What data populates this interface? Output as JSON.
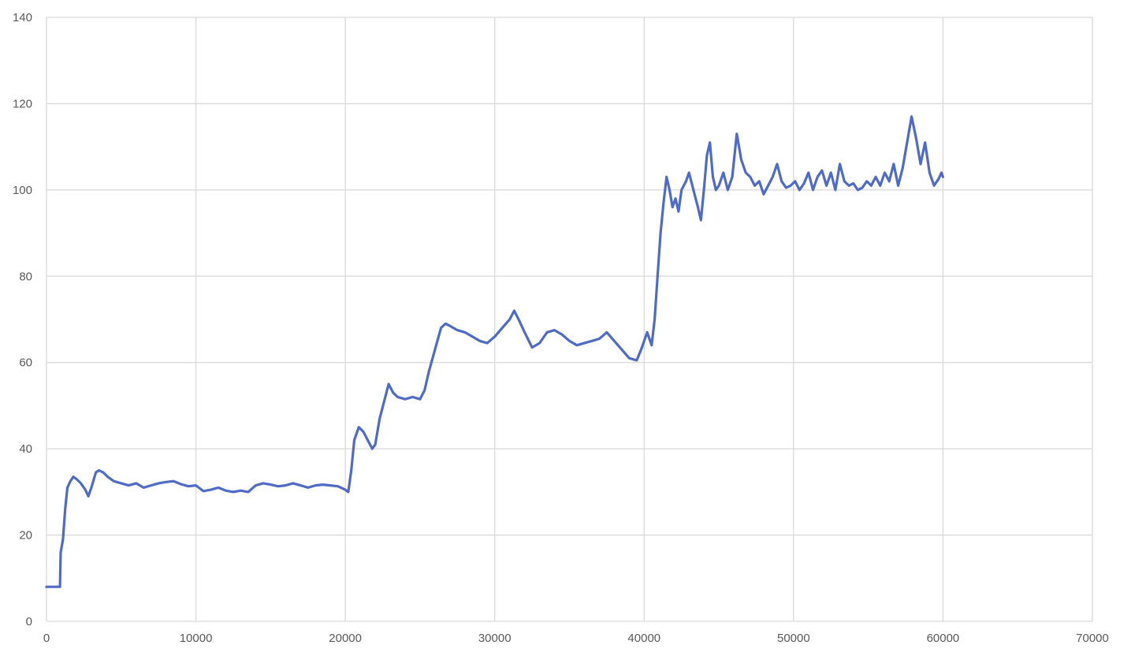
{
  "chart_data": {
    "type": "line",
    "title": "",
    "xlabel": "",
    "ylabel": "",
    "xlim": [
      0,
      70000
    ],
    "ylim": [
      0,
      140
    ],
    "x_ticks": [
      0,
      10000,
      20000,
      30000,
      40000,
      50000,
      60000,
      70000
    ],
    "y_ticks": [
      0,
      20,
      40,
      60,
      80,
      100,
      120,
      140
    ],
    "x_tick_labels": [
      "0",
      "10000",
      "20000",
      "30000",
      "40000",
      "50000",
      "60000",
      "70000"
    ],
    "y_tick_labels": [
      "0",
      "20",
      "40",
      "60",
      "80",
      "100",
      "120",
      "140"
    ],
    "grid": true,
    "legend": "none",
    "series": [
      {
        "color": "#4f6bc4",
        "points": [
          [
            0,
            8
          ],
          [
            500,
            8
          ],
          [
            900,
            8
          ],
          [
            950,
            16
          ],
          [
            1100,
            19
          ],
          [
            1250,
            26
          ],
          [
            1400,
            31
          ],
          [
            1600,
            32.5
          ],
          [
            1800,
            33.5
          ],
          [
            2000,
            33
          ],
          [
            2300,
            32
          ],
          [
            2600,
            30.5
          ],
          [
            2800,
            29
          ],
          [
            3000,
            31
          ],
          [
            3300,
            34.5
          ],
          [
            3500,
            35
          ],
          [
            3800,
            34.5
          ],
          [
            4100,
            33.5
          ],
          [
            4500,
            32.5
          ],
          [
            5000,
            32
          ],
          [
            5500,
            31.5
          ],
          [
            6000,
            32
          ],
          [
            6500,
            31
          ],
          [
            7000,
            31.5
          ],
          [
            7500,
            32
          ],
          [
            8000,
            32.3
          ],
          [
            8500,
            32.5
          ],
          [
            9000,
            31.8
          ],
          [
            9500,
            31.3
          ],
          [
            10000,
            31.5
          ],
          [
            10500,
            30.2
          ],
          [
            11000,
            30.5
          ],
          [
            11500,
            31
          ],
          [
            12000,
            30.3
          ],
          [
            12500,
            30
          ],
          [
            13000,
            30.3
          ],
          [
            13500,
            30
          ],
          [
            14000,
            31.5
          ],
          [
            14500,
            32
          ],
          [
            15000,
            31.7
          ],
          [
            15500,
            31.3
          ],
          [
            16000,
            31.5
          ],
          [
            16500,
            32
          ],
          [
            17000,
            31.5
          ],
          [
            17500,
            31
          ],
          [
            18000,
            31.5
          ],
          [
            18500,
            31.7
          ],
          [
            19000,
            31.5
          ],
          [
            19500,
            31.3
          ],
          [
            20000,
            30.5
          ],
          [
            20200,
            30
          ],
          [
            20400,
            35
          ],
          [
            20600,
            42
          ],
          [
            20900,
            45
          ],
          [
            21200,
            44
          ],
          [
            21500,
            42
          ],
          [
            21800,
            40
          ],
          [
            22000,
            41
          ],
          [
            22300,
            47
          ],
          [
            22600,
            51
          ],
          [
            22900,
            55
          ],
          [
            23200,
            53
          ],
          [
            23500,
            52
          ],
          [
            24000,
            51.5
          ],
          [
            24500,
            52
          ],
          [
            25000,
            51.5
          ],
          [
            25300,
            53.5
          ],
          [
            25600,
            58
          ],
          [
            26000,
            63
          ],
          [
            26400,
            68
          ],
          [
            26700,
            69
          ],
          [
            27000,
            68.5
          ],
          [
            27500,
            67.5
          ],
          [
            28000,
            67
          ],
          [
            28500,
            66
          ],
          [
            29000,
            65
          ],
          [
            29500,
            64.5
          ],
          [
            30000,
            66
          ],
          [
            30500,
            68
          ],
          [
            31000,
            70
          ],
          [
            31300,
            72
          ],
          [
            31600,
            70
          ],
          [
            32000,
            67
          ],
          [
            32500,
            63.5
          ],
          [
            33000,
            64.5
          ],
          [
            33500,
            67
          ],
          [
            34000,
            67.5
          ],
          [
            34500,
            66.5
          ],
          [
            35000,
            65
          ],
          [
            35500,
            64
          ],
          [
            36000,
            64.5
          ],
          [
            36500,
            65
          ],
          [
            37000,
            65.5
          ],
          [
            37500,
            67
          ],
          [
            38000,
            65
          ],
          [
            38500,
            63
          ],
          [
            39000,
            61
          ],
          [
            39500,
            60.5
          ],
          [
            39800,
            63
          ],
          [
            40200,
            67
          ],
          [
            40500,
            64
          ],
          [
            40700,
            70
          ],
          [
            40900,
            80
          ],
          [
            41100,
            90
          ],
          [
            41300,
            97
          ],
          [
            41500,
            103
          ],
          [
            41700,
            100
          ],
          [
            41900,
            96
          ],
          [
            42100,
            98
          ],
          [
            42300,
            95
          ],
          [
            42500,
            100
          ],
          [
            42800,
            102
          ],
          [
            43000,
            104
          ],
          [
            43300,
            100
          ],
          [
            43600,
            96
          ],
          [
            43800,
            93
          ],
          [
            44000,
            100
          ],
          [
            44200,
            108
          ],
          [
            44400,
            111
          ],
          [
            44600,
            103
          ],
          [
            44800,
            100
          ],
          [
            45000,
            101
          ],
          [
            45300,
            104
          ],
          [
            45600,
            100
          ],
          [
            45900,
            103
          ],
          [
            46200,
            113
          ],
          [
            46500,
            107
          ],
          [
            46800,
            104
          ],
          [
            47100,
            103
          ],
          [
            47400,
            101
          ],
          [
            47700,
            102
          ],
          [
            48000,
            99
          ],
          [
            48300,
            101
          ],
          [
            48600,
            103
          ],
          [
            48900,
            106
          ],
          [
            49200,
            102
          ],
          [
            49500,
            100.5
          ],
          [
            49800,
            101
          ],
          [
            50100,
            102
          ],
          [
            50400,
            100
          ],
          [
            50700,
            101.5
          ],
          [
            51000,
            104
          ],
          [
            51300,
            100
          ],
          [
            51600,
            103
          ],
          [
            51900,
            104.5
          ],
          [
            52200,
            101
          ],
          [
            52500,
            104
          ],
          [
            52800,
            100
          ],
          [
            53100,
            106
          ],
          [
            53400,
            102
          ],
          [
            53700,
            101
          ],
          [
            54000,
            101.5
          ],
          [
            54300,
            100
          ],
          [
            54600,
            100.5
          ],
          [
            54900,
            102
          ],
          [
            55200,
            101
          ],
          [
            55500,
            103
          ],
          [
            55800,
            101
          ],
          [
            56100,
            104
          ],
          [
            56400,
            102
          ],
          [
            56700,
            106
          ],
          [
            57000,
            101
          ],
          [
            57300,
            105
          ],
          [
            57600,
            111
          ],
          [
            57900,
            117
          ],
          [
            58200,
            112
          ],
          [
            58500,
            106
          ],
          [
            58800,
            111
          ],
          [
            59100,
            104
          ],
          [
            59400,
            101
          ],
          [
            59700,
            102.5
          ],
          [
            59900,
            104
          ],
          [
            60000,
            103
          ]
        ]
      }
    ]
  }
}
